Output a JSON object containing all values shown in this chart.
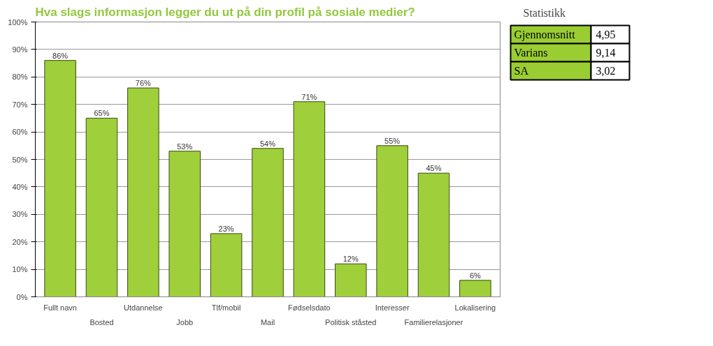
{
  "chart_data": [
    {
      "type": "bar",
      "title": "Hva slags informasjon legger du ut på din profil på sosiale medier?",
      "categories": [
        "Fullt navn",
        "Bosted",
        "Utdannelse",
        "Jobb",
        "Tlf/mobil",
        "Mail",
        "Fødselsdato",
        "Politisk ståsted",
        "Interesser",
        "Familierelasjoner",
        "Lokalisering"
      ],
      "values": [
        86,
        65,
        76,
        53,
        23,
        54,
        71,
        12,
        55,
        45,
        6
      ],
      "value_labels": [
        "86%",
        "65%",
        "76%",
        "53%",
        "23%",
        "54%",
        "71%",
        "12%",
        "55%",
        "45%",
        "6%"
      ],
      "color": "#9fcf3a",
      "ylim": [
        0,
        100
      ],
      "yticks": [
        {
          "value": 0,
          "label": "0%"
        },
        {
          "value": 10,
          "label": "10%"
        },
        {
          "value": 20,
          "label": "20%"
        },
        {
          "value": 30,
          "label": "30%"
        },
        {
          "value": 40,
          "label": "40%"
        },
        {
          "value": 50,
          "label": "50%"
        },
        {
          "value": 60,
          "label": "60%"
        },
        {
          "value": 70,
          "label": "70%"
        },
        {
          "value": 80,
          "label": "80%"
        },
        {
          "value": 90,
          "label": "90%"
        },
        {
          "value": 100,
          "label": "100%"
        }
      ],
      "grid": "y"
    },
    {
      "type": "other",
      "title": "Statistikk",
      "annotations": [
        "Gjennomsnitt",
        "4,95",
        "Varians",
        "9,14",
        "SA",
        "3,02"
      ]
    }
  ]
}
